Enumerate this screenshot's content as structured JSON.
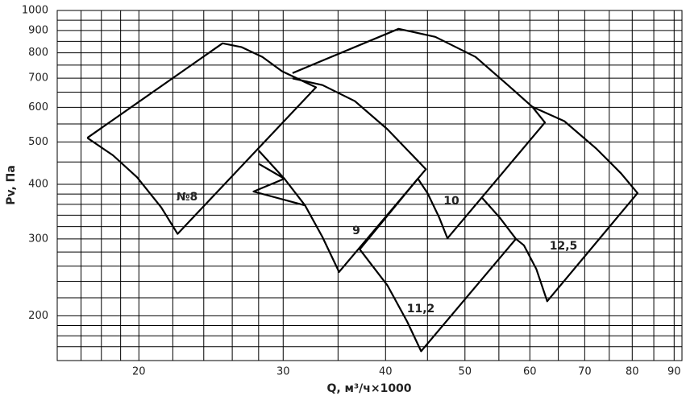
{
  "chart_data": {
    "type": "line",
    "x_label": "Q, м³/ч×1000",
    "y_label": "Pv, Па",
    "log_x": true,
    "log_y": true,
    "grid": true,
    "color": "#000000",
    "xlim": [
      15.9,
      92
    ],
    "ylim": [
      158,
      1000
    ],
    "xticks": [
      20,
      30,
      40,
      50,
      60,
      70,
      80,
      90
    ],
    "yticks": [
      200,
      300,
      400,
      500,
      600,
      700,
      800,
      900,
      1000
    ],
    "minor_xgrid": [
      17,
      18,
      19,
      22,
      24,
      26,
      28,
      35,
      45,
      55,
      65,
      75,
      85
    ],
    "minor_ygrid": [
      170,
      180,
      190,
      220,
      240,
      260,
      280,
      320,
      340,
      360,
      380,
      450,
      550,
      650,
      750,
      850,
      950
    ],
    "series": [
      {
        "name": "№8",
        "x": [
          17.3,
          25.3,
          26.7,
          28.3,
          29.9,
          32.9,
          22.3,
          21.3,
          19.9,
          18.6,
          17.3
        ],
        "values": [
          511,
          841,
          824,
          783,
          726,
          667,
          308,
          354,
          415,
          466,
          511
        ]
      },
      {
        "name": "9",
        "x": [
          30.8,
          33.5,
          36.7,
          40.2,
          44.8,
          35.1,
          33.5,
          31.9,
          30.1,
          28.0,
          null,
          28.0,
          30.1,
          27.6,
          31.9
        ],
        "values": [
          699,
          675,
          620,
          535,
          433,
          252,
          303,
          358,
          412,
          478,
          null,
          446,
          412,
          385,
          358
        ]
      },
      {
        "name": "10",
        "x": [
          30.8,
          41.5,
          46.0,
          51.5,
          56.4,
          60.4,
          62.6,
          47.6,
          46.5,
          45.0,
          43.8
        ],
        "values": [
          719,
          908,
          870,
          783,
          675,
          602,
          554,
          301,
          336,
          382,
          412
        ]
      },
      {
        "name": "11,2",
        "x": [
          43.8,
          37.2,
          40.2,
          42.5,
          44.2,
          57.7,
          55.1,
          52.5
        ],
        "values": [
          412,
          284,
          235,
          194,
          166,
          300,
          336,
          372
        ]
      },
      {
        "name": "12,5",
        "x": [
          60.4,
          66.1,
          72.4,
          77.5,
          81.2,
          63.0,
          61.1,
          59.0,
          57.7
        ],
        "values": [
          602,
          558,
          482,
          424,
          382,
          216,
          256,
          290,
          300
        ]
      }
    ]
  }
}
